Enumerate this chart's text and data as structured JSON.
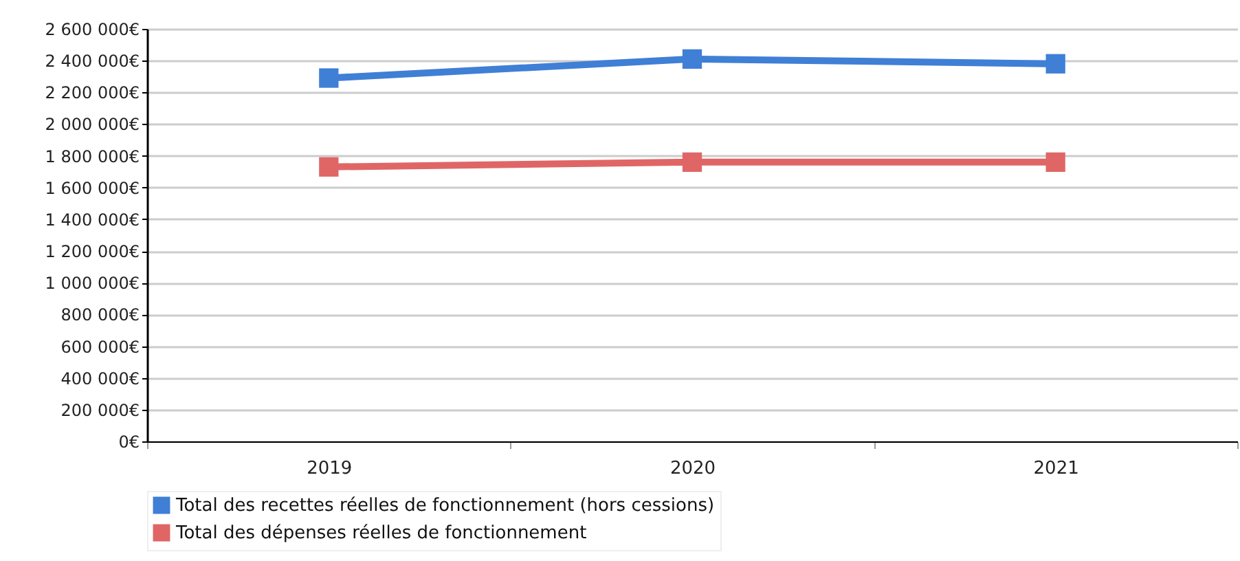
{
  "chart_data": {
    "type": "line",
    "categories": [
      "2019",
      "2020",
      "2021"
    ],
    "series": [
      {
        "name": "Total des recettes réelles de fonctionnement (hors cessions)",
        "color": "#3f7fd6",
        "values": [
          2290000,
          2410000,
          2380000
        ]
      },
      {
        "name": "Total des dépenses réelles de fonctionnement",
        "color": "#e06666",
        "values": [
          1730000,
          1760000,
          1760000
        ]
      }
    ],
    "ylim": [
      0,
      2600000
    ],
    "yticks": [
      {
        "value": 0,
        "label": "0€"
      },
      {
        "value": 200000,
        "label": "200 000€"
      },
      {
        "value": 400000,
        "label": "400 000€"
      },
      {
        "value": 600000,
        "label": "600 000€"
      },
      {
        "value": 800000,
        "label": "800 000€"
      },
      {
        "value": 1000000,
        "label": "1 000 000€"
      },
      {
        "value": 1200000,
        "label": "1 200 000€"
      },
      {
        "value": 1400000,
        "label": "1 400 000€"
      },
      {
        "value": 1600000,
        "label": "1 600 000€"
      },
      {
        "value": 1800000,
        "label": "1 800 000€"
      },
      {
        "value": 2000000,
        "label": "2 000 000€"
      },
      {
        "value": 2200000,
        "label": "2 200 000€"
      },
      {
        "value": 2400000,
        "label": "2 400 000€"
      },
      {
        "value": 2600000,
        "label": "2 600 000€"
      }
    ],
    "grid": "y",
    "legend": "bottom",
    "marker": "square",
    "line_style": "solid"
  }
}
